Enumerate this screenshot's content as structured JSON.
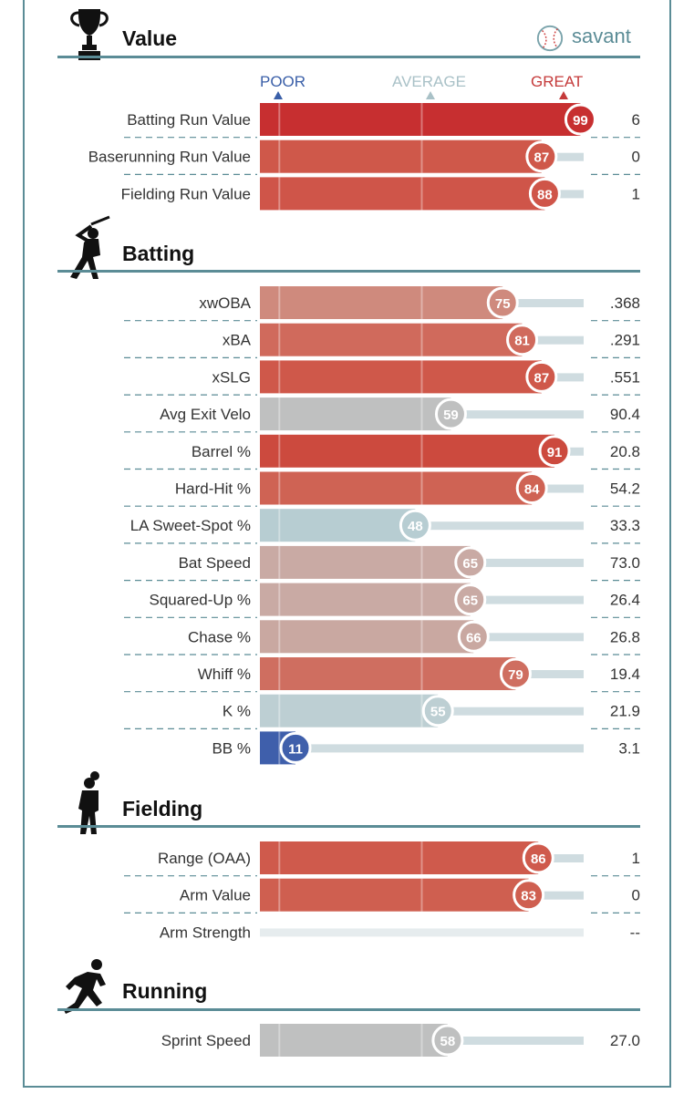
{
  "brand": {
    "logo_text": "savant",
    "logo_icon": "baseball-icon"
  },
  "scale": {
    "poor": "POOR",
    "average": "AVERAGE",
    "great": "GREAT",
    "poor_color": "#3a5fa8",
    "average_color": "#a9c1c7",
    "great_color": "#c53a3a"
  },
  "sections": {
    "value": {
      "title": "Value",
      "icon": "trophy-icon"
    },
    "batting": {
      "title": "Batting",
      "icon": "batter-icon"
    },
    "fielding": {
      "title": "Fielding",
      "icon": "fielder-icon"
    },
    "running": {
      "title": "Running",
      "icon": "runner-icon"
    }
  },
  "chart_data": {
    "type": "bar",
    "xlim": [
      0,
      100
    ],
    "groups": [
      {
        "section": "Value",
        "metrics": [
          {
            "label": "Batting Run Value",
            "percentile": 99,
            "value": "6",
            "color": "#c72f30"
          },
          {
            "label": "Baserunning Run Value",
            "percentile": 87,
            "value": "0",
            "color": "#cf584a"
          },
          {
            "label": "Fielding Run Value",
            "percentile": 88,
            "value": "1",
            "color": "#cf5549"
          }
        ]
      },
      {
        "section": "Batting",
        "metrics": [
          {
            "label": "xwOBA",
            "percentile": 75,
            "value": ".368",
            "color": "#cf8a7d"
          },
          {
            "label": "xBA",
            "percentile": 81,
            "value": ".291",
            "color": "#d06a5c"
          },
          {
            "label": "xSLG",
            "percentile": 87,
            "value": ".551",
            "color": "#cf584a"
          },
          {
            "label": "Avg Exit Velo",
            "percentile": 59,
            "value": "90.4",
            "color": "#bfc0c0"
          },
          {
            "label": "Barrel %",
            "percentile": 91,
            "value": "20.8",
            "color": "#cc4a3e"
          },
          {
            "label": "Hard-Hit %",
            "percentile": 84,
            "value": "54.2",
            "color": "#cf6354"
          },
          {
            "label": "LA Sweet-Spot %",
            "percentile": 48,
            "value": "33.3",
            "color": "#b7cdd2"
          },
          {
            "label": "Bat Speed",
            "percentile": 65,
            "value": "73.0",
            "color": "#c9aaa4"
          },
          {
            "label": "Squared-Up %",
            "percentile": 65,
            "value": "26.4",
            "color": "#c9aaa4"
          },
          {
            "label": "Chase %",
            "percentile": 66,
            "value": "26.8",
            "color": "#c9a8a1"
          },
          {
            "label": "Whiff %",
            "percentile": 79,
            "value": "19.4",
            "color": "#cf6e60"
          },
          {
            "label": "K %",
            "percentile": 55,
            "value": "21.9",
            "color": "#bdcfd3"
          },
          {
            "label": "BB %",
            "percentile": 11,
            "value": "3.1",
            "color": "#3f5fab"
          }
        ]
      },
      {
        "section": "Fielding",
        "metrics": [
          {
            "label": "Range (OAA)",
            "percentile": 86,
            "value": "1",
            "color": "#cf5a4c"
          },
          {
            "label": "Arm Value",
            "percentile": 83,
            "value": "0",
            "color": "#cf5f50"
          },
          {
            "label": "Arm Strength",
            "percentile": null,
            "value": "--",
            "color": "#e6ecee"
          }
        ]
      },
      {
        "section": "Running",
        "metrics": [
          {
            "label": "Sprint Speed",
            "percentile": 58,
            "value": "27.0",
            "color": "#bfc0c0"
          }
        ]
      }
    ]
  }
}
